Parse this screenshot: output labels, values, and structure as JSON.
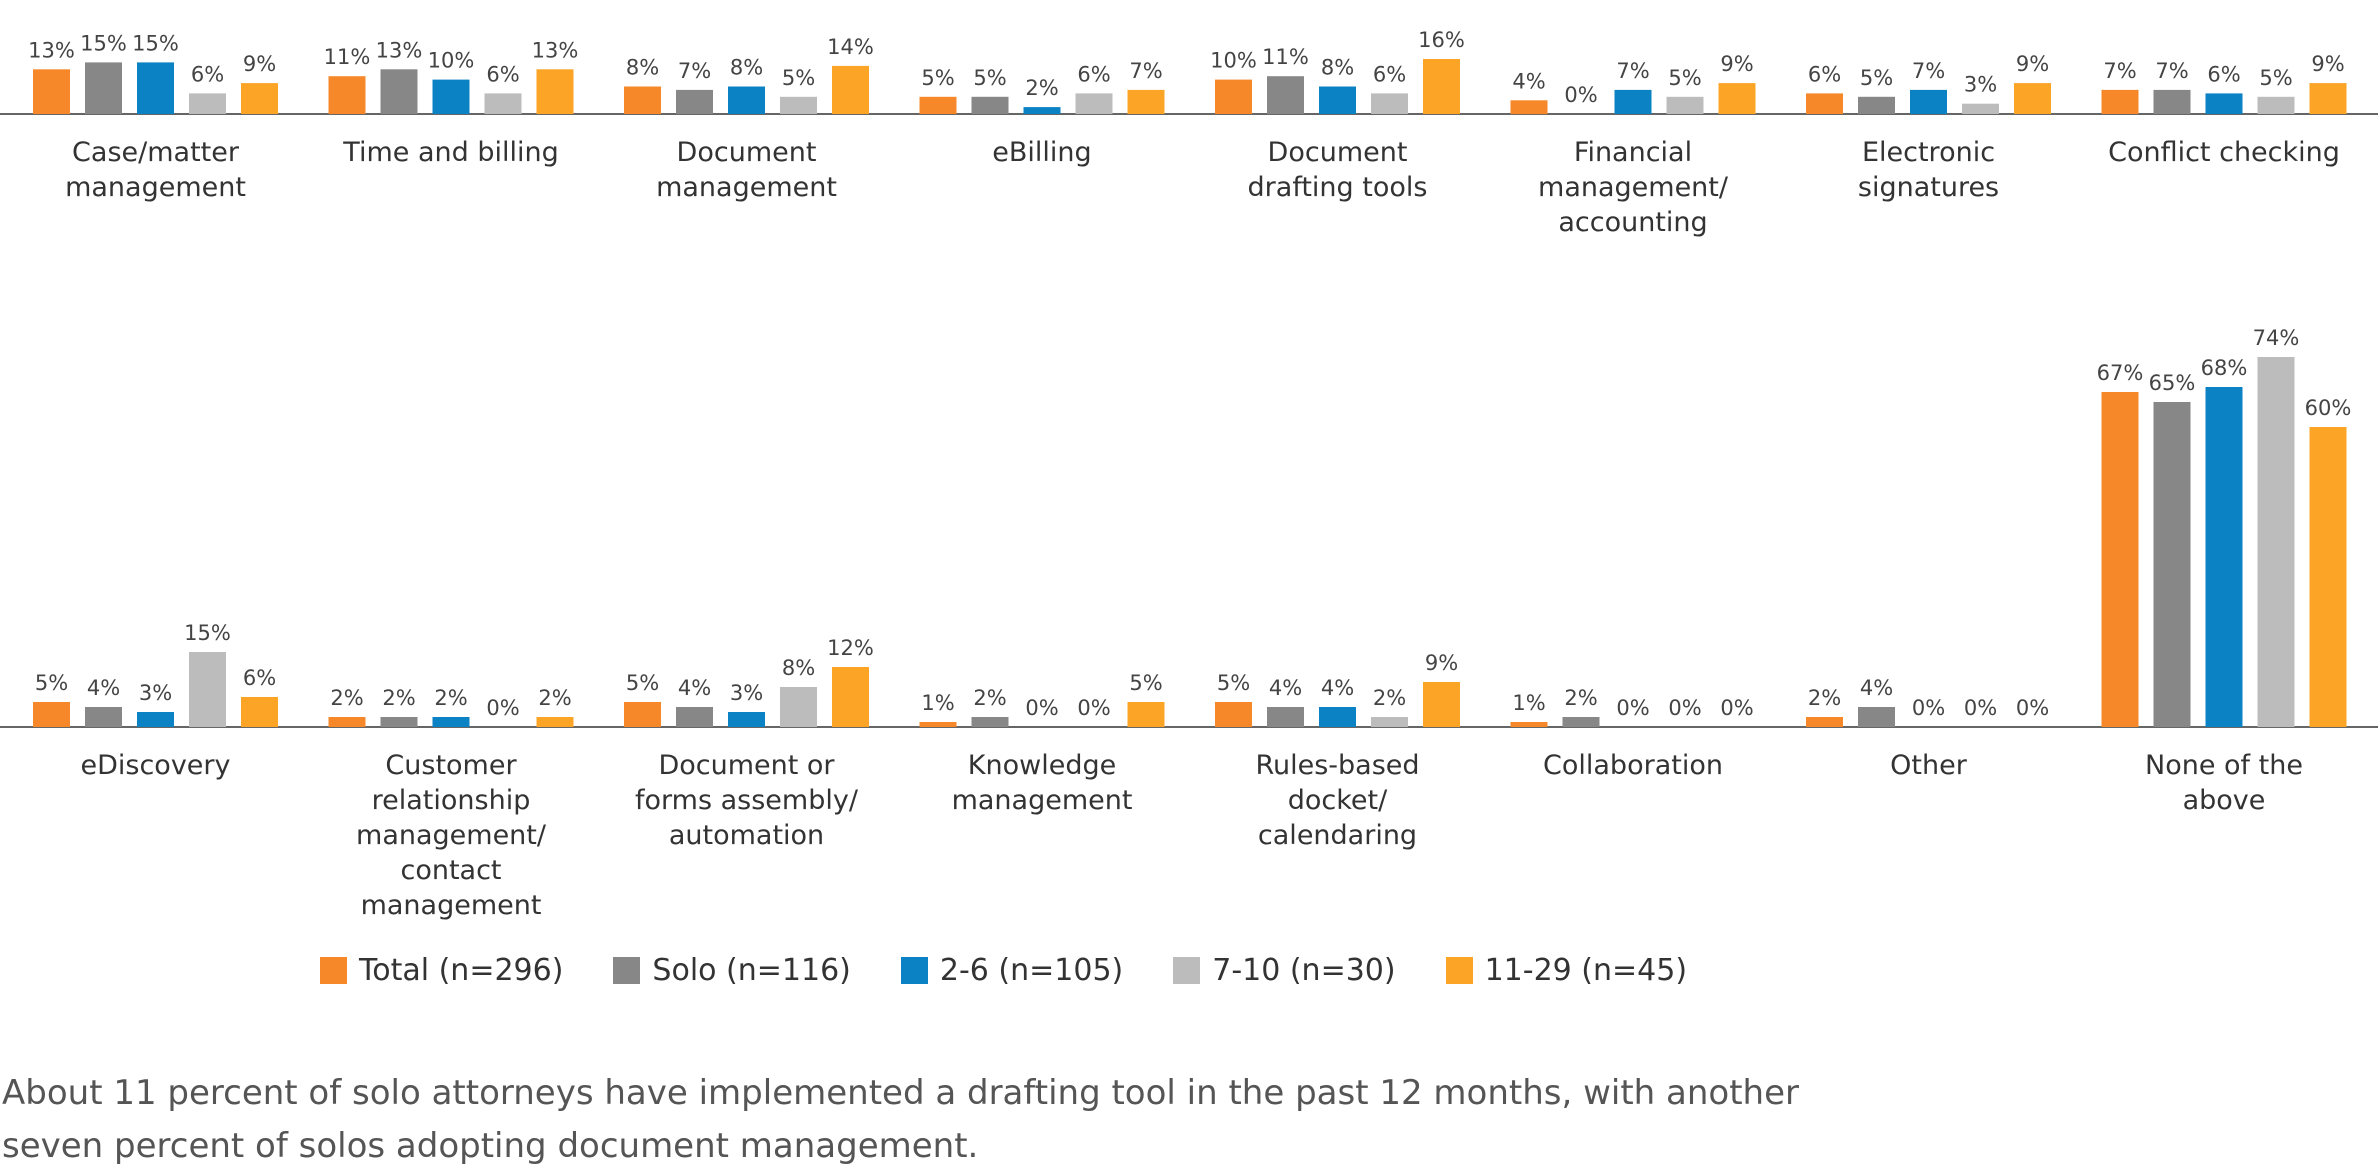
{
  "chart_data": {
    "type": "bar",
    "series": [
      {
        "name": "Total (n=296)",
        "color": "#f7882a"
      },
      {
        "name": "Solo (n=116)",
        "color": "#878787"
      },
      {
        "name": "2-6 (n=105)",
        "color": "#0b82c4"
      },
      {
        "name": "7-10 (n=30)",
        "color": "#bcbcbc"
      },
      {
        "name": "11-29 (n=45)",
        "color": "#fca425"
      }
    ],
    "rows": [
      {
        "categories": [
          {
            "label": "Case/matter\nmanagement",
            "values": [
              13,
              15,
              15,
              6,
              9
            ]
          },
          {
            "label": "Time and billing",
            "values": [
              11,
              13,
              10,
              6,
              13
            ]
          },
          {
            "label": "Document\nmanagement",
            "values": [
              8,
              7,
              8,
              5,
              14
            ]
          },
          {
            "label": "eBilling",
            "values": [
              5,
              5,
              2,
              6,
              7
            ]
          },
          {
            "label": "Document\ndrafting tools",
            "values": [
              10,
              11,
              8,
              6,
              16
            ]
          },
          {
            "label": "Financial\nmanagement/\naccounting",
            "values": [
              4,
              0,
              7,
              5,
              9
            ]
          },
          {
            "label": "Electronic\nsignatures",
            "values": [
              6,
              5,
              7,
              3,
              9
            ]
          },
          {
            "label": "Conflict checking",
            "values": [
              7,
              7,
              6,
              5,
              9
            ]
          }
        ]
      },
      {
        "categories": [
          {
            "label": "eDiscovery",
            "values": [
              5,
              4,
              3,
              15,
              6
            ]
          },
          {
            "label": "Customer\nrelationship\nmanagement/\ncontact management",
            "values": [
              2,
              2,
              2,
              0,
              2
            ]
          },
          {
            "label": "Document or\nforms assembly/\nautomation",
            "values": [
              5,
              4,
              3,
              8,
              12
            ]
          },
          {
            "label": "Knowledge\nmanagement",
            "values": [
              1,
              2,
              0,
              0,
              5
            ]
          },
          {
            "label": "Rules-based\ndocket/\ncalendaring",
            "values": [
              5,
              4,
              4,
              2,
              9
            ]
          },
          {
            "label": "Collaboration",
            "values": [
              1,
              2,
              0,
              0,
              0
            ]
          },
          {
            "label": "Other",
            "values": [
              2,
              4,
              0,
              0,
              0
            ]
          },
          {
            "label": "None of the\nabove",
            "values": [
              67,
              65,
              68,
              74,
              60
            ]
          }
        ]
      }
    ],
    "value_suffix": "%"
  },
  "caption": "About 11 percent of solo attorneys have implemented a drafting tool in the past 12 months, with another seven percent of solos adopting document management."
}
